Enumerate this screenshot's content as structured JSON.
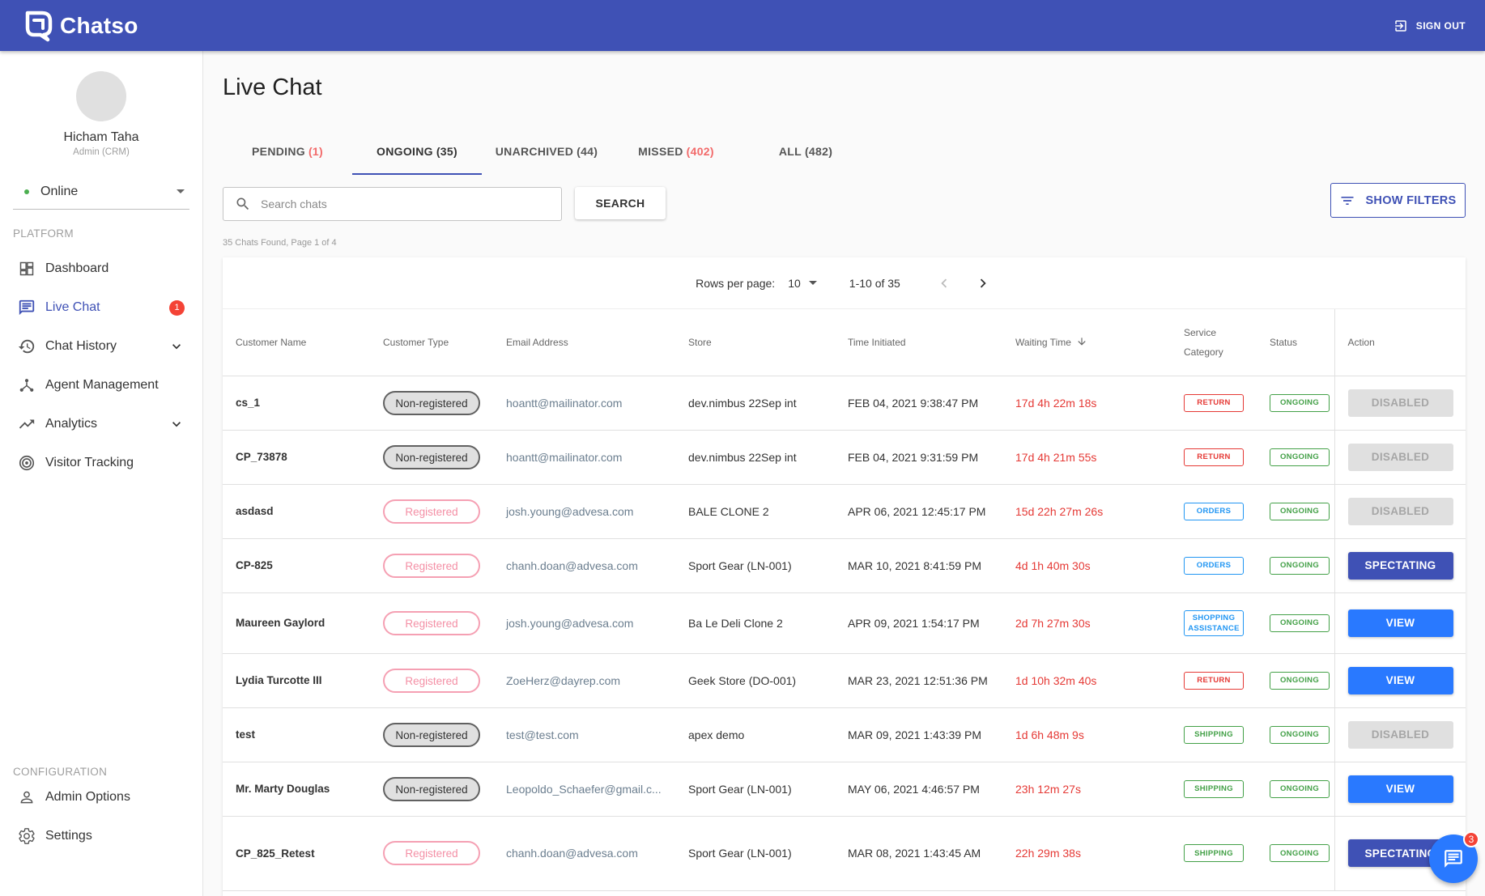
{
  "header": {
    "brand_name": "Chatso",
    "sign_out_label": "SIGN OUT"
  },
  "sidebar": {
    "user_name": "Hicham Taha",
    "user_role": "Admin (CRM)",
    "status_value": "Online",
    "platform_label": "PLATFORM",
    "configuration_label": "CONFIGURATION",
    "items": [
      {
        "label": "Dashboard",
        "icon": "dashboard-icon"
      },
      {
        "label": "Live Chat",
        "icon": "chat-icon",
        "badge": "1"
      },
      {
        "label": "Chat History",
        "icon": "history-icon"
      },
      {
        "label": "Agent Management",
        "icon": "agent-management-icon"
      },
      {
        "label": "Analytics",
        "icon": "analytics-icon"
      },
      {
        "label": "Visitor Tracking",
        "icon": "visitor-tracking-icon"
      }
    ],
    "config_items": [
      {
        "label": "Admin Options",
        "icon": "person-icon"
      },
      {
        "label": "Settings",
        "icon": "gear-icon"
      }
    ]
  },
  "main": {
    "title": "Live Chat",
    "tabs": [
      {
        "label": "PENDING",
        "count": "(1)"
      },
      {
        "label": "ONGOING",
        "count": "(35)"
      },
      {
        "label": "UNARCHIVED",
        "count": "(44)"
      },
      {
        "label": "MISSED",
        "count": "(402)"
      },
      {
        "label": "ALL",
        "count": "(482)"
      }
    ],
    "search_placeholder": "Search chats",
    "search_button": "SEARCH",
    "filters_button": "SHOW FILTERS",
    "found_text": "35 Chats Found, Page 1 of 4"
  },
  "pager": {
    "rows_per_page_label": "Rows per page:",
    "rows_per_page_value": "10",
    "range": "1-10 of 35"
  },
  "table": {
    "headers": {
      "customer_name": "Customer Name",
      "customer_type": "Customer Type",
      "email": "Email Address",
      "store": "Store",
      "time_initiated": "Time Initiated",
      "waiting_time": "Waiting Time",
      "service_category_1": "Service",
      "service_category_2": "Category",
      "status": "Status",
      "action": "Action"
    },
    "rows": [
      {
        "name": "cs_1",
        "type": "Non-registered",
        "email": "hoantt@mailinator.com",
        "store": "dev.nimbus 22Sep int",
        "time": "FEB 04, 2021 9:38:47 PM",
        "wait": "17d 4h 22m 18s",
        "category": "RETURN",
        "status": "ONGOING",
        "action": "DISABLED"
      },
      {
        "name": "CP_73878",
        "type": "Non-registered",
        "email": "hoantt@mailinator.com",
        "store": "dev.nimbus 22Sep int",
        "time": "FEB 04, 2021 9:31:59 PM",
        "wait": "17d 4h 21m 55s",
        "category": "RETURN",
        "status": "ONGOING",
        "action": "DISABLED"
      },
      {
        "name": "asdasd",
        "type": "Registered",
        "email": "josh.young@advesa.com",
        "store": "BALE CLONE 2",
        "time": "APR 06, 2021 12:45:17 PM",
        "wait": "15d 22h 27m 26s",
        "category": "ORDERS",
        "status": "ONGOING",
        "action": "DISABLED"
      },
      {
        "name": "CP-825",
        "type": "Registered",
        "email": "chanh.doan@advesa.com",
        "store": "Sport Gear (LN-001)",
        "time": "MAR 10, 2021 8:41:59 PM",
        "wait": "4d 1h 40m 30s",
        "category": "ORDERS",
        "status": "ONGOING",
        "action": "SPECTATING"
      },
      {
        "name": "Maureen Gaylord",
        "type": "Registered",
        "email": "josh.young@advesa.com",
        "store": "Ba Le Deli Clone 2",
        "time": "APR 09, 2021 1:54:17 PM",
        "wait": "2d 7h 27m 30s",
        "category": "SHOPPING ASSISTANCE",
        "status": "ONGOING",
        "action": "VIEW"
      },
      {
        "name": "Lydia Turcotte III",
        "type": "Registered",
        "email": "ZoeHerz@dayrep.com",
        "store": "Geek Store (DO-001)",
        "time": "MAR 23, 2021 12:51:36 PM",
        "wait": "1d 10h 32m 40s",
        "category": "RETURN",
        "status": "ONGOING",
        "action": "VIEW"
      },
      {
        "name": "test",
        "type": "Non-registered",
        "email": "test@test.com",
        "store": "apex demo",
        "time": "MAR 09, 2021 1:43:39 PM",
        "wait": "1d 6h 48m 9s",
        "category": "SHIPPING",
        "status": "ONGOING",
        "action": "DISABLED"
      },
      {
        "name": "Mr. Marty Douglas",
        "type": "Non-registered",
        "email": "Leopoldo_Schaefer@gmail.c...",
        "store": "Sport Gear (LN-001)",
        "time": "MAY 06, 2021 4:46:57 PM",
        "wait": "23h 12m 27s",
        "category": "SHIPPING",
        "status": "ONGOING",
        "action": "VIEW"
      },
      {
        "name": "CP_825_Retest",
        "type": "Registered",
        "email": "chanh.doan@advesa.com",
        "store": "Sport Gear (LN-001)",
        "time": "MAR 08, 2021 1:43:45 AM",
        "wait": "22h 29m 38s",
        "category": "SHIPPING",
        "status": "ONGOING",
        "action": "SPECTATING"
      }
    ]
  },
  "fab": {
    "badge": "3"
  },
  "colors": {
    "primary": "#3f51b5",
    "view_button": "#2979ff",
    "alert_red": "#e53935",
    "online_green": "#4caf50"
  }
}
